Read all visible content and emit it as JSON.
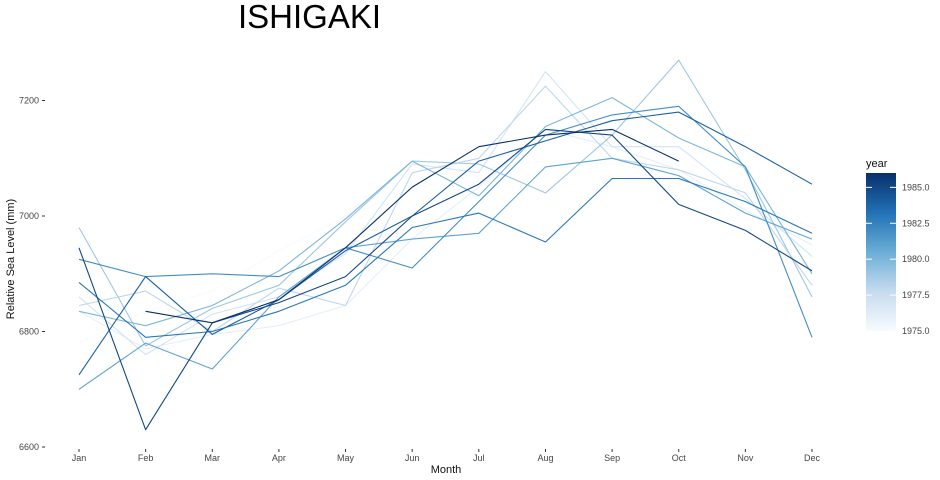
{
  "chart_data": {
    "type": "line",
    "title": "ISHIGAKI",
    "xlabel": "Month",
    "ylabel": "Relative Sea Level (mm)",
    "categories": [
      "Jan",
      "Feb",
      "Mar",
      "Apr",
      "May",
      "Jun",
      "Jul",
      "Aug",
      "Sep",
      "Oct",
      "Nov",
      "Dec"
    ],
    "yticks": [
      6600,
      6800,
      7000,
      7200
    ],
    "ylim": [
      6600,
      7300
    ],
    "grid": false,
    "legend": {
      "title": "year",
      "position": "right",
      "type": "colorbar",
      "range": [
        1975,
        1986
      ],
      "ticks": [
        "1975.0",
        "1977.5",
        "1980.0",
        "1982.5",
        "1985.0"
      ],
      "tick_values": [
        1975,
        1977.5,
        1980,
        1982.5,
        1985
      ],
      "colors": [
        "#f7fbff",
        "#c6dbef",
        "#6baed6",
        "#2171b5",
        "#08306b"
      ]
    },
    "series": [
      {
        "year": 1975,
        "values": [
          6780,
          6835,
          6870,
          6940,
          7000,
          7045,
          7080,
          7095,
          7090,
          7070,
          7030,
          6980
        ]
      },
      {
        "year": 1976,
        "values": [
          6835,
          6770,
          6795,
          6810,
          6845,
          6960,
          7050,
          7150,
          7120,
          7080,
          7010,
          6950
        ]
      },
      {
        "year": 1977,
        "values": [
          6860,
          6760,
          6830,
          6860,
          6935,
          7090,
          7075,
          7250,
          7120,
          7120,
          7030,
          6930
        ]
      },
      {
        "year": 1978,
        "values": [
          6845,
          6870,
          6800,
          6875,
          6845,
          7075,
          7100,
          7225,
          7100,
          7080,
          7040,
          6880
        ]
      },
      {
        "year": 1979,
        "values": [
          6980,
          6775,
          6840,
          6880,
          6990,
          7095,
          7090,
          7040,
          7140,
          7270,
          7080,
          6860
        ]
      },
      {
        "year": 1980,
        "values": [
          6835,
          6810,
          6845,
          6905,
          6995,
          7095,
          7035,
          7155,
          7205,
          7135,
          7085,
          6900
        ]
      },
      {
        "year": 1981,
        "values": [
          6700,
          6780,
          6735,
          6860,
          6945,
          6960,
          6970,
          7085,
          7100,
          7070,
          7005,
          6960
        ]
      },
      {
        "year": 1982,
        "values": [
          6925,
          6895,
          6900,
          6895,
          6945,
          6910,
          7025,
          7140,
          7175,
          7190,
          7085,
          6790
        ]
      },
      {
        "year": 1983,
        "values": [
          6885,
          6790,
          6800,
          6835,
          6880,
          6980,
          7005,
          6955,
          7065,
          7065,
          7025,
          6970
        ]
      },
      {
        "year": 1984,
        "values": [
          6725,
          6895,
          6795,
          6855,
          6940,
          7000,
          7095,
          7130,
          7165,
          7180,
          7120,
          7055
        ]
      },
      {
        "year": 1985,
        "values": [
          6945,
          6630,
          6815,
          6850,
          6895,
          7000,
          7055,
          7150,
          7140,
          7020,
          6975,
          6905
        ]
      },
      {
        "year": 1986,
        "values": [
          null,
          6835,
          6815,
          6855,
          6945,
          7050,
          7120,
          7140,
          7150,
          7095,
          null,
          null
        ]
      }
    ]
  }
}
